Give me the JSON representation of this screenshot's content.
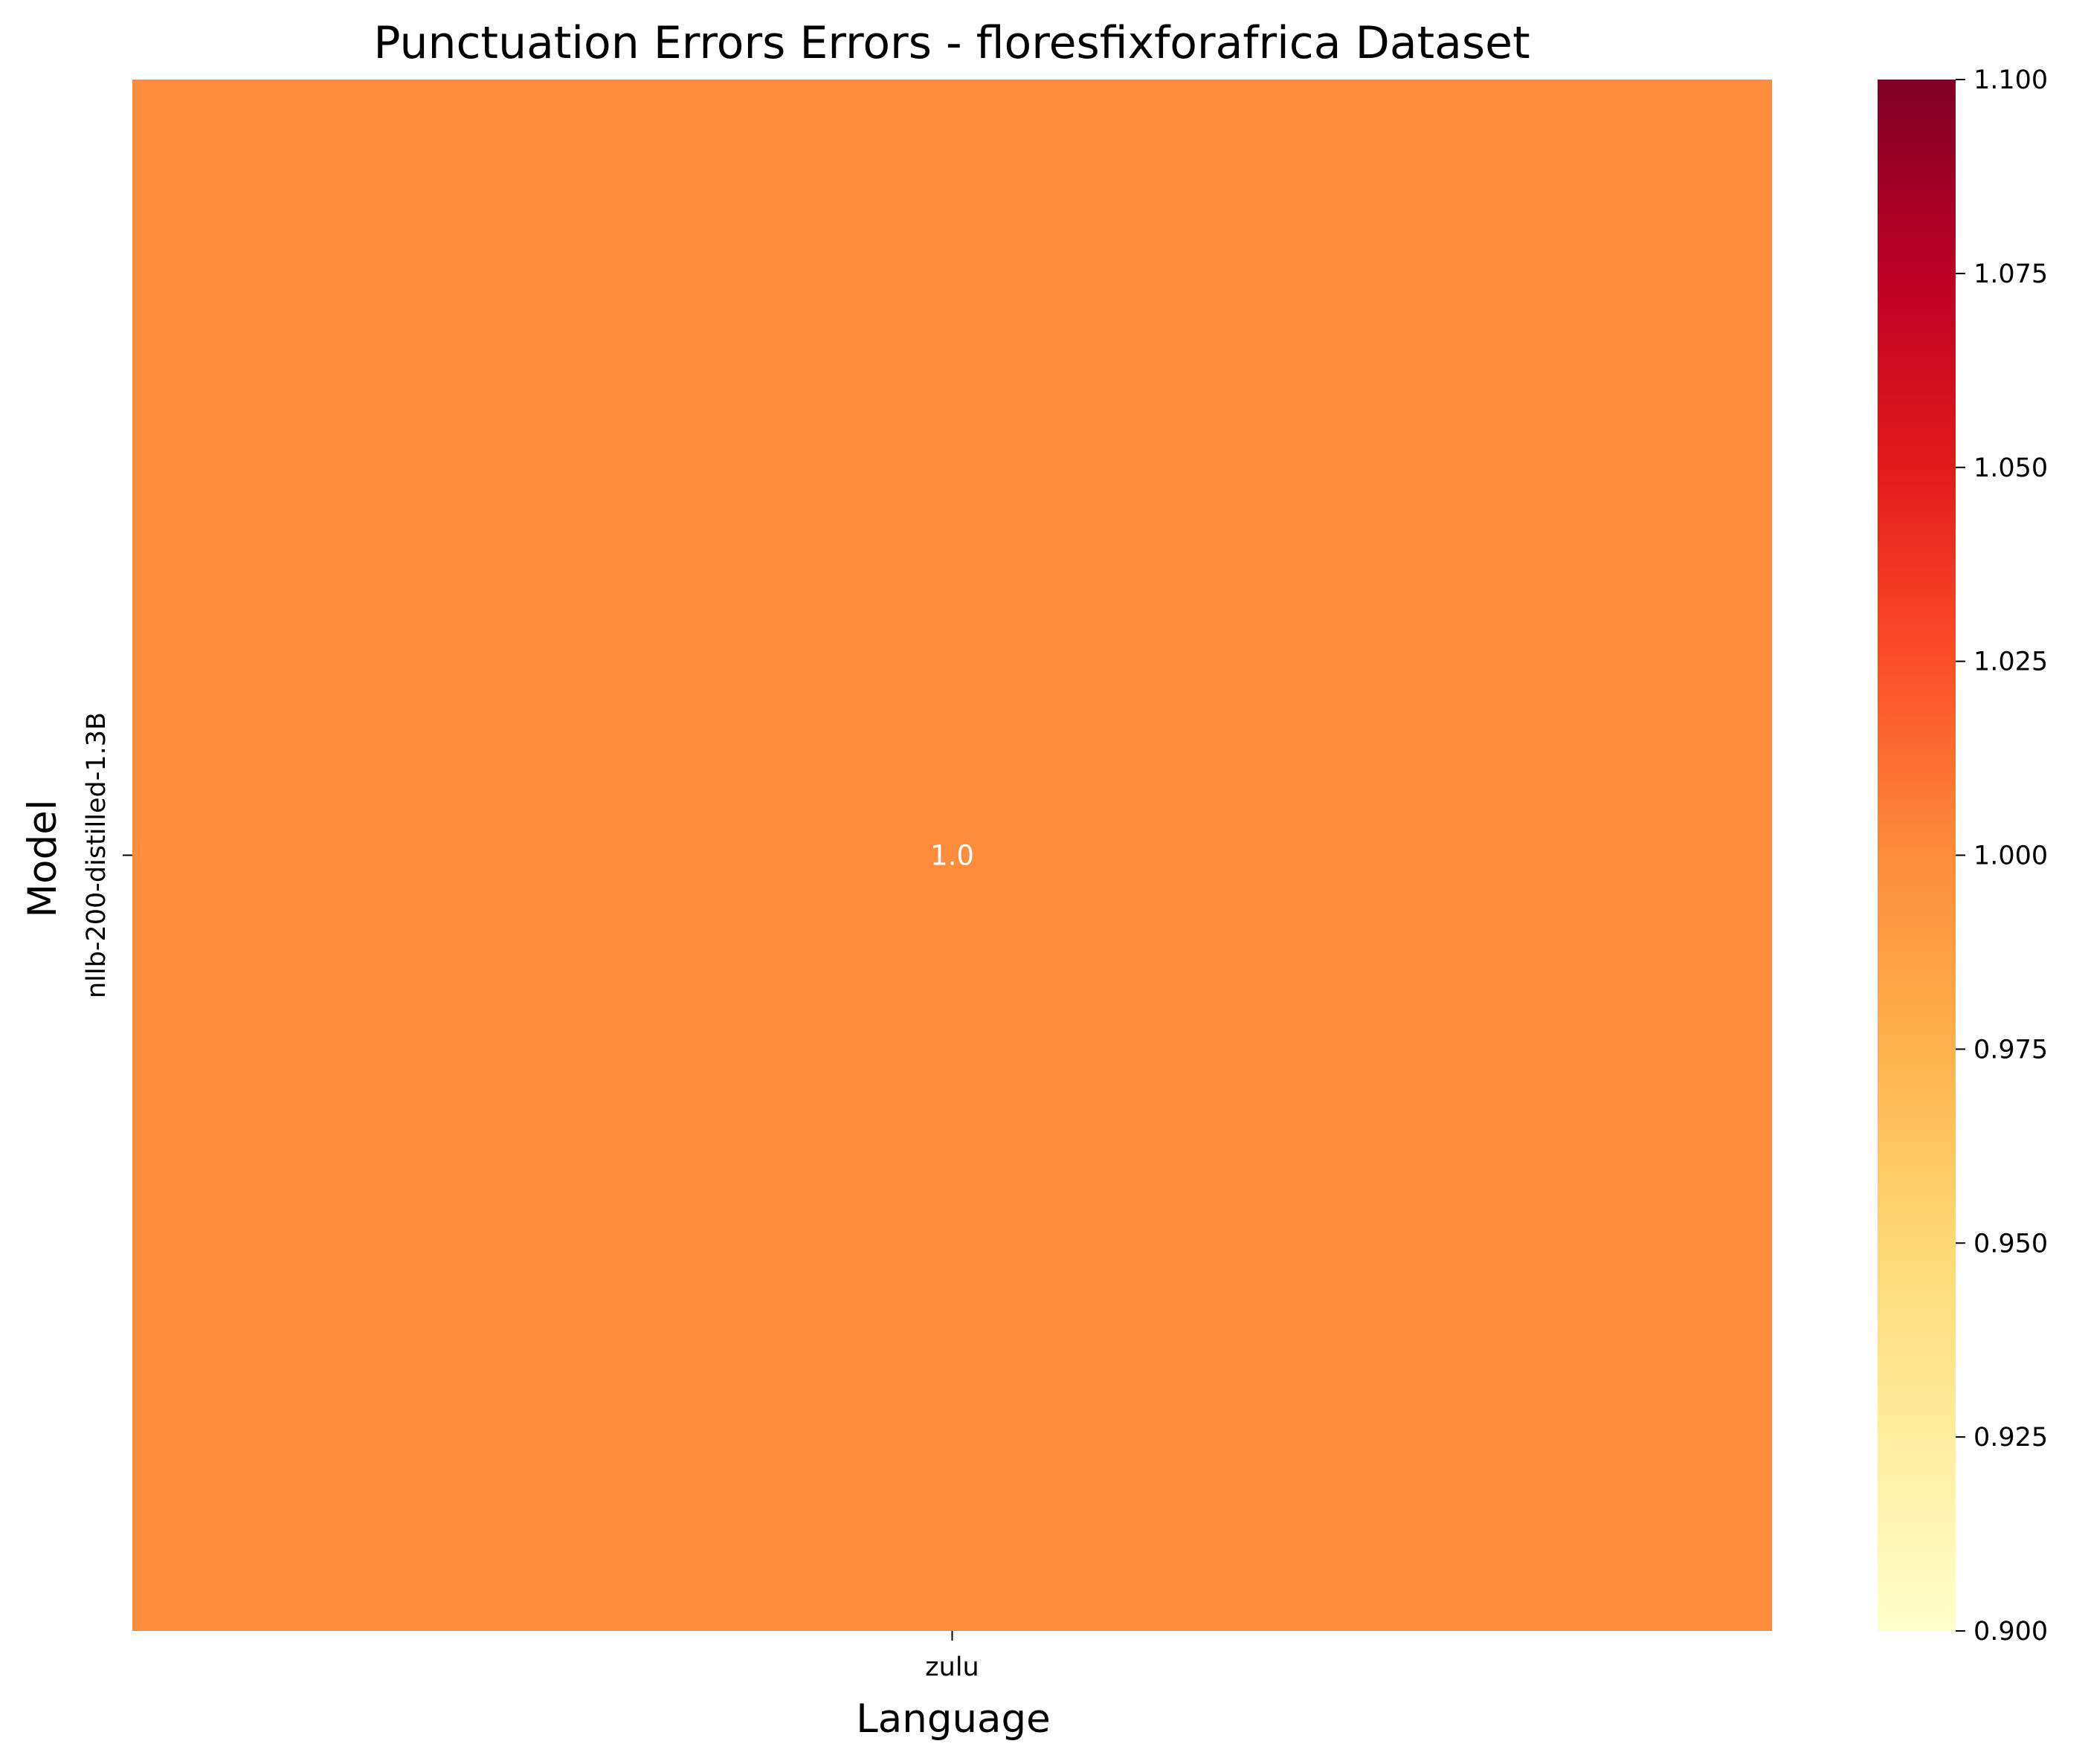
{
  "chart_data": {
    "type": "heatmap",
    "title": "Punctuation Errors Errors - floresfixforafrica Dataset",
    "xlabel": "Language",
    "ylabel": "Model",
    "x_categories": [
      "zulu"
    ],
    "y_categories": [
      "nllb-200-distilled-1.3B"
    ],
    "values": [
      [
        1.0
      ]
    ],
    "annotations": [
      [
        "1.0"
      ]
    ],
    "colormap": "YlOrRd",
    "colorbar": {
      "min": 0.9,
      "max": 1.1,
      "ticks": [
        0.9,
        0.925,
        0.95,
        0.975,
        1.0,
        1.025,
        1.05,
        1.075,
        1.1
      ],
      "tick_labels": [
        "0.900",
        "0.925",
        "0.950",
        "0.975",
        "1.000",
        "1.025",
        "1.050",
        "1.075",
        "1.100"
      ]
    },
    "colors": {
      "cell": "#fd8d3c",
      "annotation_text": "#ffffff",
      "colormap_stops": [
        "#ffffcc",
        "#ffeda0",
        "#fed976",
        "#feb24c",
        "#fd8d3c",
        "#fc4e2a",
        "#e31a1c",
        "#bd0026",
        "#800026"
      ]
    }
  }
}
